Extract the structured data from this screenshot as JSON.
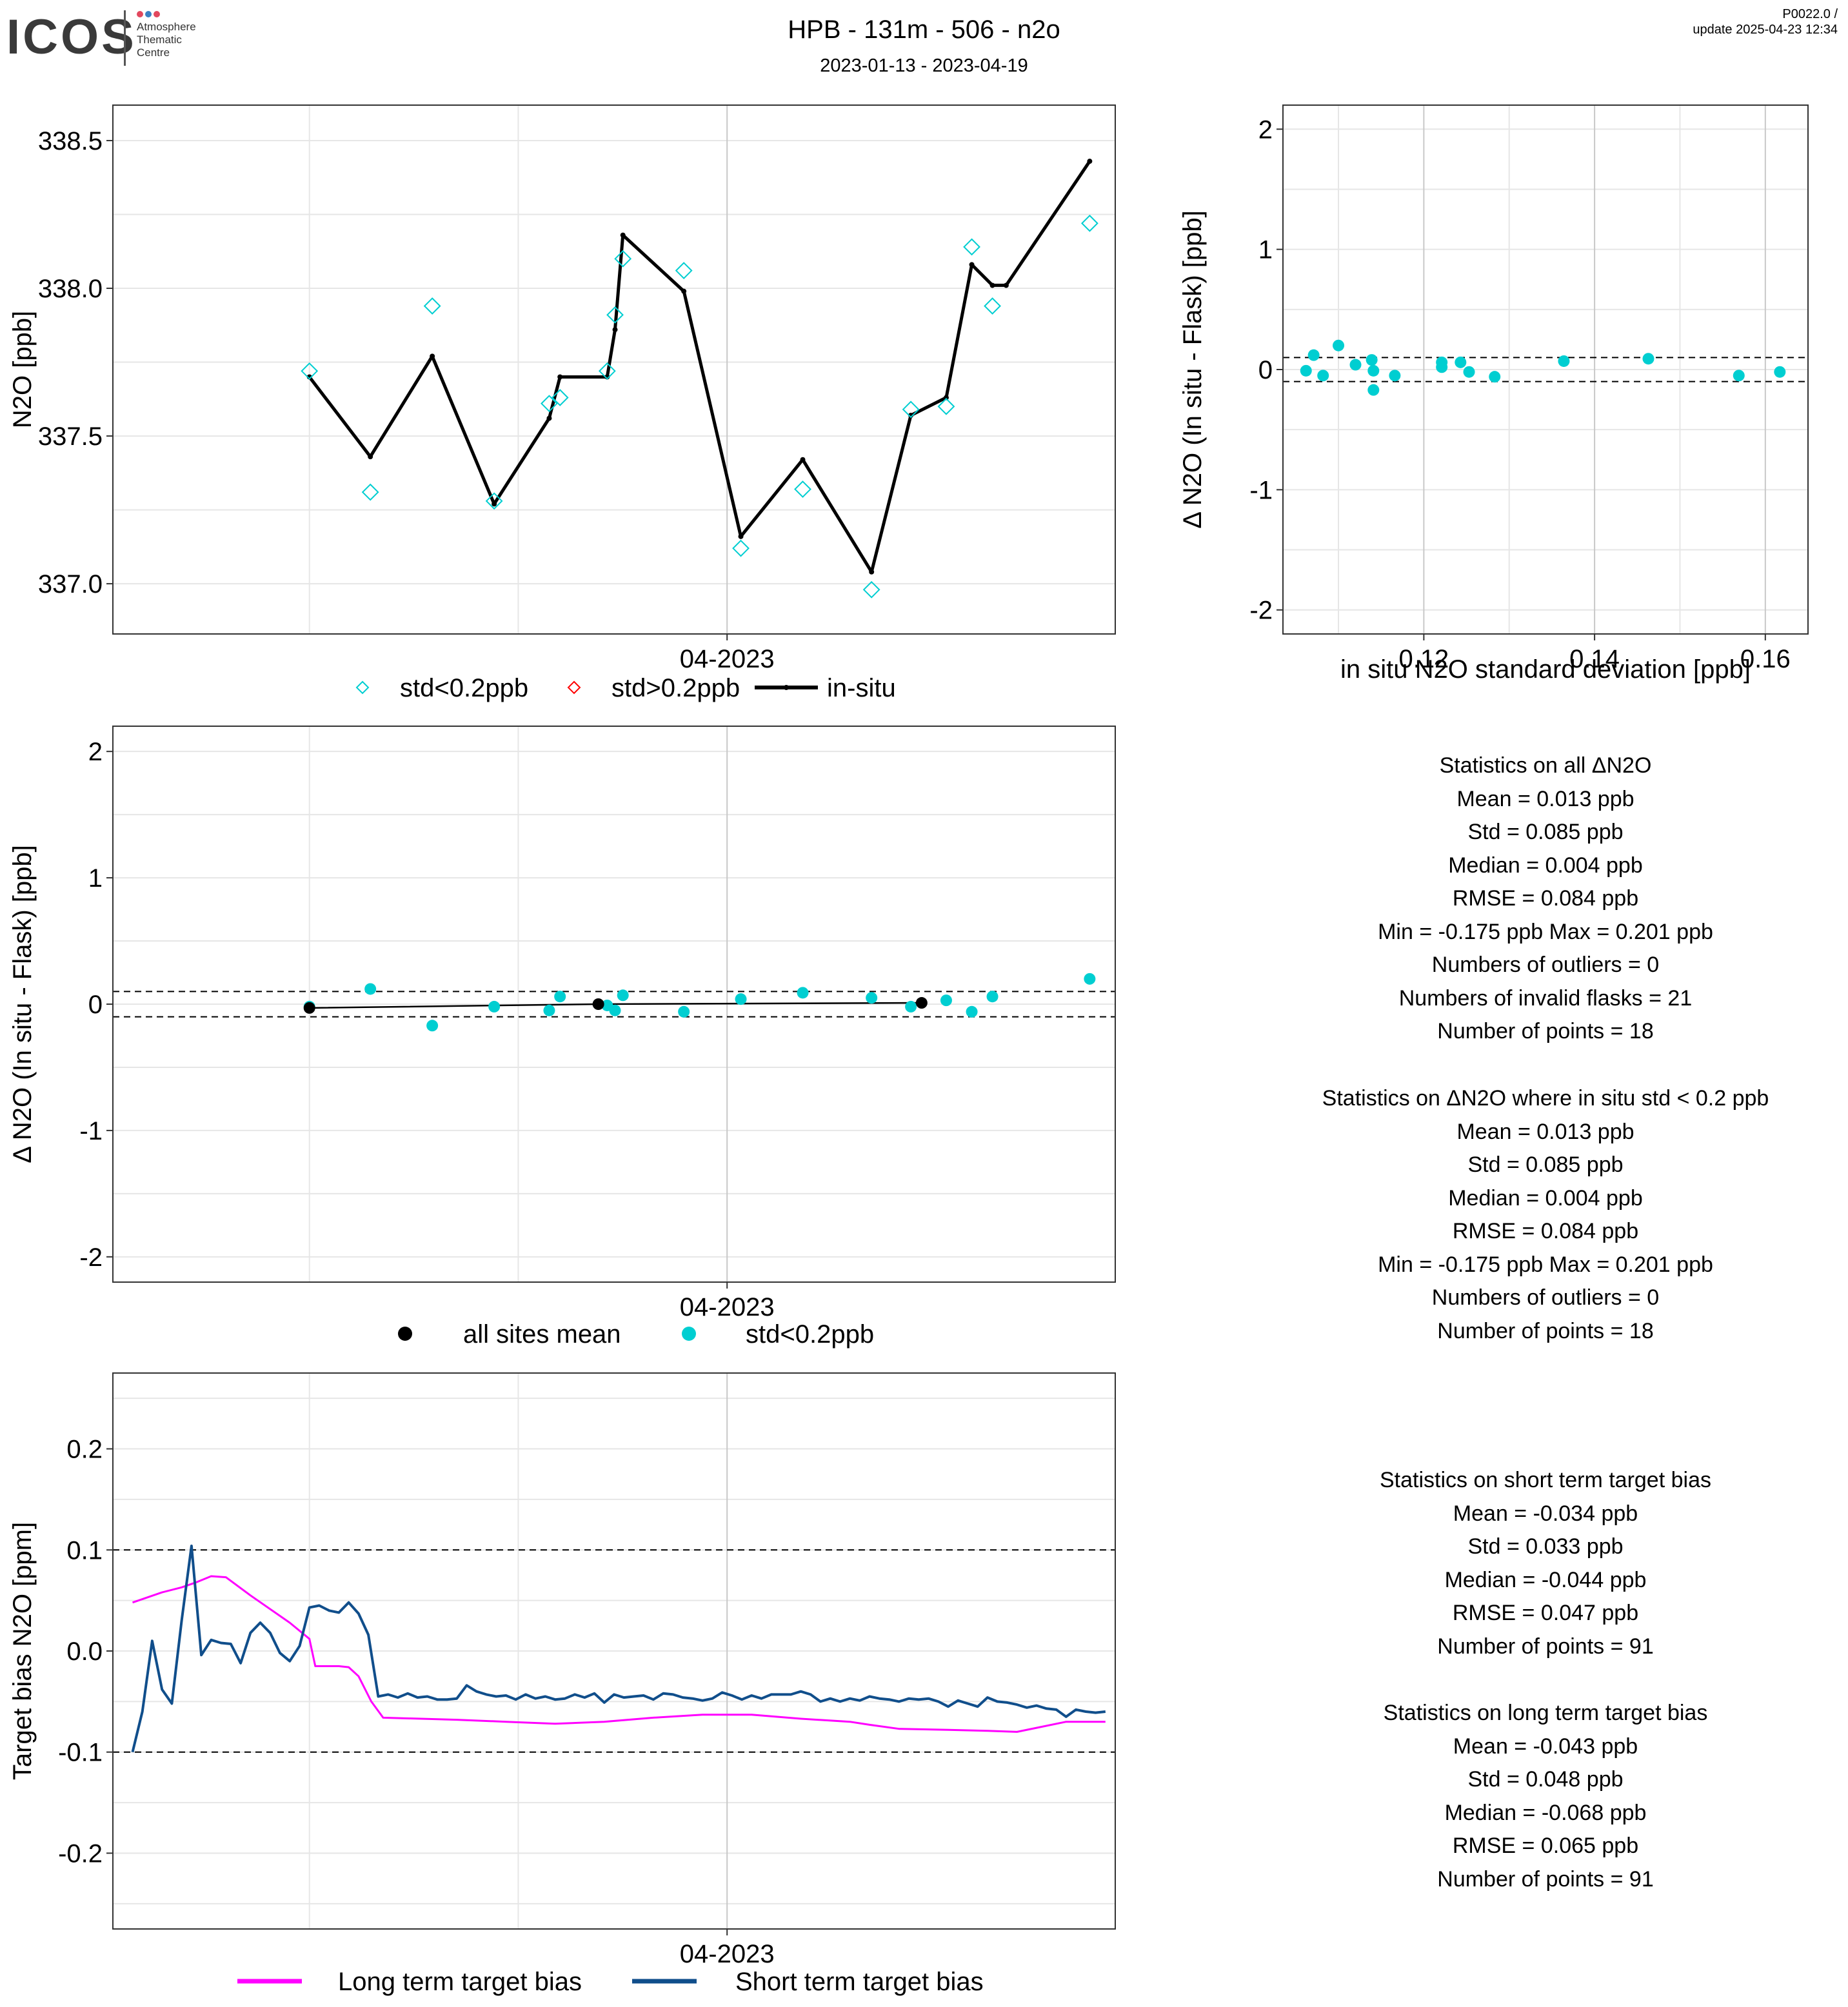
{
  "header": {
    "logo_text": "ICOS",
    "logo_sub": [
      "Atmosphere",
      "Thematic",
      "Centre"
    ],
    "title": "HPB - 131m - 506 - n2o",
    "subtitle": "2023-01-13 - 2023-04-19",
    "version": "P0022.0 /",
    "update": "update  2025-04-23 12:34"
  },
  "colors": {
    "flask_ok": "#00CED1",
    "flask_bad": "#FF0000",
    "insitu": "#000000",
    "long_term": "#FF00FF",
    "short_term": "#104E8B",
    "grid": "#E6E6E6",
    "axis_vline": "#C8C8C8"
  },
  "chart_data": [
    {
      "id": "timeseries",
      "type": "line",
      "ylabel": "N2O [ppb]",
      "x_tick_labels": [
        "04-2023"
      ],
      "y_ticks": [
        337.0,
        337.5,
        338.0,
        338.5
      ],
      "y_tick_labels": [
        "337.0",
        "337.5",
        "338.0",
        "338.5"
      ],
      "xlim": [
        -5,
        97
      ],
      "ylim": [
        336.83,
        338.62
      ],
      "x_tick_values": [
        -5,
        57.5
      ],
      "legend": [
        "std<0.2ppb",
        "std>0.2ppb",
        "in-situ"
      ],
      "legend_position": "bottom",
      "series": [
        {
          "name": "in-situ",
          "x": [
            15,
            21.2,
            27.5,
            33.8,
            39.4,
            40.5,
            45.3,
            46.1,
            46.9,
            53.1,
            58.9,
            65.2,
            72.2,
            76.2,
            79.8,
            82.4,
            84.5,
            85.9,
            94.4
          ],
          "y": [
            337.7,
            337.43,
            337.77,
            337.27,
            337.56,
            337.7,
            337.7,
            337.86,
            338.18,
            337.99,
            337.16,
            337.42,
            337.04,
            337.57,
            337.63,
            338.08,
            338.01,
            338.01,
            338.43
          ]
        },
        {
          "name": "std<0.2ppb",
          "x": [
            15,
            21.2,
            27.5,
            33.8,
            39.4,
            40.5,
            45.3,
            46.1,
            46.9,
            53.1,
            58.9,
            65.2,
            72.2,
            76.2,
            79.8,
            82.4,
            84.5,
            94.4
          ],
          "y": [
            337.72,
            337.31,
            337.94,
            337.28,
            337.61,
            337.63,
            337.72,
            337.91,
            338.1,
            338.06,
            337.12,
            337.32,
            336.98,
            337.59,
            337.6,
            338.14,
            337.94,
            338.22
          ]
        },
        {
          "name": "std>0.2ppb",
          "x": [],
          "y": []
        }
      ]
    },
    {
      "id": "delta_vs_std",
      "type": "scatter",
      "xlabel": "in situ N2O standard deviation [ppb]",
      "ylabel": "Δ N2O (In situ - Flask) [ppb]",
      "xlim": [
        0.1035,
        0.165
      ],
      "ylim": [
        -2.2,
        2.2
      ],
      "x_ticks": [
        0.12,
        0.14,
        0.16
      ],
      "x_tick_labels": [
        "0.12",
        "0.14",
        "0.16"
      ],
      "y_ticks": [
        -2,
        -1,
        0,
        1,
        2
      ],
      "y_tick_labels": [
        "-2",
        "-1",
        "0",
        "1",
        "2"
      ],
      "hlines": [
        0.1,
        -0.1
      ],
      "series": [
        {
          "name": "std<0.2ppb",
          "x": [
            0.1062,
            0.1071,
            0.1082,
            0.11,
            0.112,
            0.1139,
            0.1141,
            0.1141,
            0.1166,
            0.1221,
            0.1221,
            0.1243,
            0.1253,
            0.1283,
            0.1364,
            0.1463,
            0.1569,
            0.1617
          ],
          "y": [
            -0.01,
            0.12,
            -0.05,
            0.2,
            0.04,
            0.08,
            -0.17,
            -0.01,
            -0.05,
            0.02,
            0.06,
            0.06,
            -0.02,
            -0.06,
            0.07,
            0.09,
            -0.05,
            -0.02
          ]
        }
      ]
    },
    {
      "id": "delta_timeseries",
      "type": "scatter",
      "ylabel": "Δ N2O (In situ - Flask) [ppb]",
      "x_tick_labels": [
        "04-2023"
      ],
      "xlim": [
        -5,
        97
      ],
      "ylim": [
        -2.2,
        2.2
      ],
      "y_ticks": [
        -2,
        -1,
        0,
        1,
        2
      ],
      "y_tick_labels": [
        "-2",
        "-1",
        "0",
        "1",
        "2"
      ],
      "hlines": [
        0.1,
        -0.1
      ],
      "legend": [
        "all sites mean",
        "std<0.2ppb"
      ],
      "legend_position": "bottom",
      "series": [
        {
          "name": "all sites mean",
          "x": [
            15,
            44.4,
            77.3
          ],
          "y": [
            -0.03,
            0.0,
            0.01
          ]
        },
        {
          "name": "std<0.2ppb",
          "x": [
            15,
            21.2,
            27.5,
            33.8,
            39.4,
            40.5,
            45.3,
            46.1,
            46.9,
            53.1,
            58.9,
            65.2,
            72.2,
            76.2,
            79.8,
            82.4,
            84.5,
            94.4
          ],
          "y": [
            -0.02,
            0.12,
            -0.17,
            -0.02,
            -0.05,
            0.06,
            -0.01,
            -0.05,
            0.07,
            -0.06,
            0.04,
            0.09,
            0.05,
            -0.02,
            0.03,
            -0.06,
            0.06,
            0.2
          ]
        }
      ]
    },
    {
      "id": "target_bias",
      "type": "line",
      "ylabel": "Target bias N2O [ppm]",
      "x_tick_labels": [
        "04-2023"
      ],
      "xlim": [
        -5,
        97
      ],
      "ylim": [
        -0.275,
        0.275
      ],
      "y_ticks": [
        -0.2,
        -0.1,
        0.0,
        0.1,
        0.2
      ],
      "y_tick_labels": [
        "-0.2",
        "-0.1",
        "0.0",
        "0.1",
        "0.2"
      ],
      "hlines": [
        0.1,
        -0.1
      ],
      "legend": [
        "Long term target bias",
        "Short term target bias"
      ],
      "legend_position": "bottom",
      "series": [
        {
          "name": "Long term target bias",
          "x": [
            -3,
            0,
            2,
            3.5,
            5,
            6.5,
            9,
            13,
            15,
            15.6,
            18,
            19,
            20,
            21.3,
            22.5,
            30,
            35,
            40,
            45,
            50,
            55,
            60,
            65,
            70,
            72,
            75,
            80,
            84,
            87,
            89,
            92,
            96
          ],
          "y": [
            0.048,
            0.058,
            0.063,
            0.068,
            0.074,
            0.073,
            0.055,
            0.028,
            0.012,
            -0.015,
            -0.015,
            -0.016,
            -0.025,
            -0.05,
            -0.066,
            -0.068,
            -0.07,
            -0.072,
            -0.07,
            -0.066,
            -0.063,
            -0.063,
            -0.067,
            -0.07,
            -0.073,
            -0.077,
            -0.078,
            -0.079,
            -0.08,
            -0.076,
            -0.07,
            -0.07
          ]
        },
        {
          "name": "Short term target bias",
          "x": [
            -3,
            -2,
            -1,
            0,
            1,
            2,
            3,
            4,
            5,
            6,
            7,
            8,
            9,
            10,
            11,
            12,
            13,
            14,
            15,
            16,
            17,
            18,
            19,
            20,
            21,
            22,
            23,
            24,
            25,
            26,
            27,
            28,
            29,
            30,
            31,
            32,
            33,
            34,
            35,
            36,
            37,
            38,
            39,
            40,
            41,
            42,
            43,
            44,
            45,
            46,
            47,
            48,
            49,
            50,
            51,
            52,
            53,
            54,
            55,
            56,
            57,
            58,
            59,
            60,
            61,
            62,
            63,
            64,
            65,
            66,
            67,
            68,
            69,
            70,
            71,
            72,
            73,
            74,
            75,
            76,
            77,
            78,
            79,
            80,
            81,
            82,
            83,
            84,
            85,
            86,
            87,
            88,
            89,
            90,
            91,
            92,
            93,
            94,
            95,
            96
          ],
          "y": [
            -0.1,
            -0.06,
            0.01,
            -0.038,
            -0.052,
            0.03,
            0.104,
            -0.004,
            0.011,
            0.008,
            0.007,
            -0.012,
            0.018,
            0.028,
            0.018,
            -0.002,
            -0.01,
            0.005,
            0.043,
            0.045,
            0.04,
            0.038,
            0.048,
            0.037,
            0.016,
            -0.045,
            -0.043,
            -0.046,
            -0.042,
            -0.046,
            -0.045,
            -0.048,
            -0.048,
            -0.047,
            -0.034,
            -0.04,
            -0.043,
            -0.045,
            -0.044,
            -0.048,
            -0.043,
            -0.047,
            -0.045,
            -0.048,
            -0.047,
            -0.043,
            -0.046,
            -0.042,
            -0.051,
            -0.043,
            -0.046,
            -0.045,
            -0.044,
            -0.048,
            -0.042,
            -0.043,
            -0.046,
            -0.047,
            -0.049,
            -0.047,
            -0.041,
            -0.044,
            -0.048,
            -0.044,
            -0.047,
            -0.043,
            -0.043,
            -0.043,
            -0.04,
            -0.043,
            -0.05,
            -0.047,
            -0.05,
            -0.047,
            -0.049,
            -0.045,
            -0.047,
            -0.048,
            -0.05,
            -0.047,
            -0.048,
            -0.047,
            -0.05,
            -0.055,
            -0.049,
            -0.052,
            -0.055,
            -0.046,
            -0.05,
            -0.051,
            -0.053,
            -0.056,
            -0.054,
            -0.057,
            -0.058,
            -0.065,
            -0.058,
            -0.06,
            -0.061,
            -0.06
          ]
        }
      ]
    }
  ],
  "stats": {
    "all": {
      "title": "Statistics on all ΔN2O",
      "lines": [
        "Mean =  0.013 ppb",
        "Std =  0.085 ppb",
        "Median =  0.004 ppb",
        "RMSE =  0.084 ppb",
        "Min =  -0.175 ppb Max =  0.201 ppb",
        "Numbers of outliers =  0",
        "Numbers of invalid flasks =  21",
        "Number of points =  18"
      ]
    },
    "std_filtered": {
      "title": "Statistics on ΔN2O where in situ std < 0.2 ppb",
      "lines": [
        "Mean =  0.013 ppb",
        "Std =  0.085 ppb",
        "Median =  0.004 ppb",
        "RMSE =  0.084 ppb",
        "Min =  -0.175 ppb Max =  0.201 ppb",
        "Numbers of outliers =  0",
        "Number of points =  18"
      ]
    },
    "short_term": {
      "title": "Statistics on short term target bias",
      "lines": [
        "Mean =  -0.034 ppb",
        "Std =  0.033 ppb",
        "Median =  -0.044 ppb",
        "RMSE =  0.047 ppb",
        "Number of points =  91"
      ]
    },
    "long_term": {
      "title": "Statistics on long term target bias",
      "lines": [
        "Mean =  -0.043 ppb",
        "Std =  0.048 ppb",
        "Median =  -0.068 ppb",
        "RMSE =  0.065 ppb",
        "Number of points =  91"
      ]
    }
  }
}
